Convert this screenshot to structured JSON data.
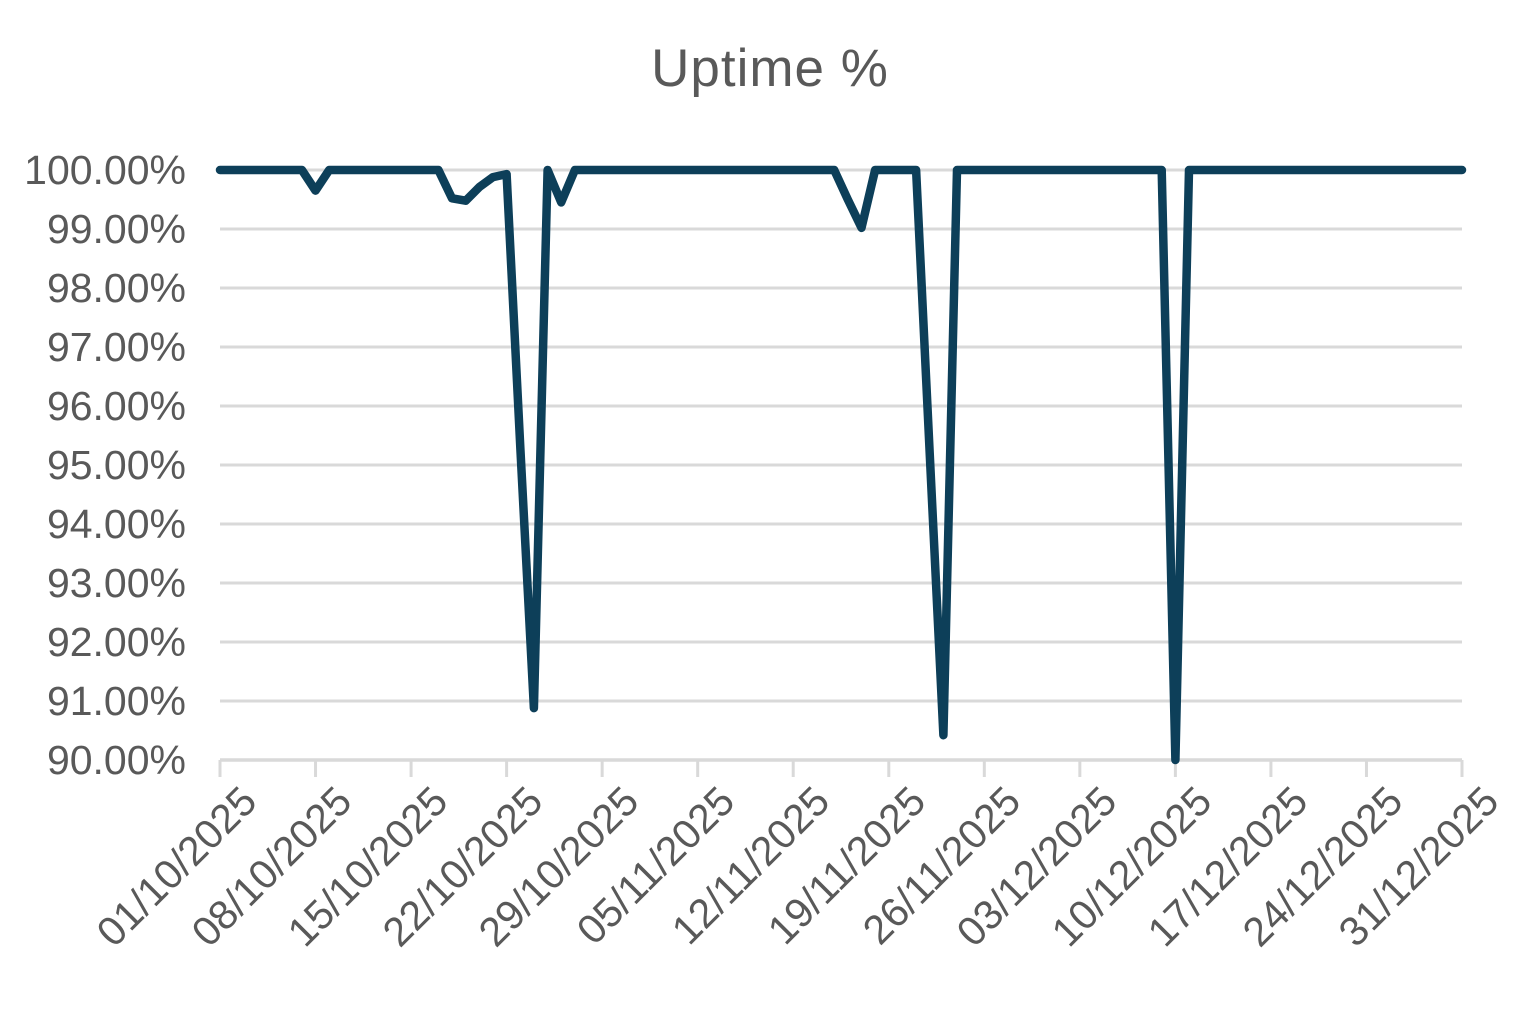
{
  "chart": {
    "title": "Uptime %"
  },
  "colors": {
    "line": "#0D3F59",
    "gridline": "#D9D9D9",
    "axis_text": "#595959",
    "title_text": "#595959",
    "background": "#FFFFFF"
  },
  "chart_data": {
    "type": "line",
    "title": "Uptime %",
    "legend": "none",
    "grid": "horizontal",
    "ylim": [
      90,
      100
    ],
    "ylabel": "",
    "xlabel": "",
    "y_tick_labels": [
      "100.00%",
      "99.00%",
      "98.00%",
      "97.00%",
      "96.00%",
      "95.00%",
      "94.00%",
      "93.00%",
      "92.00%",
      "91.00%",
      "90.00%"
    ],
    "x_tick_labels": [
      "01/10/2025",
      "08/10/2025",
      "15/10/2025",
      "22/10/2025",
      "29/10/2025",
      "05/11/2025",
      "12/11/2025",
      "19/11/2025",
      "26/11/2025",
      "03/12/2025",
      "10/12/2025",
      "17/12/2025",
      "24/12/2025",
      "31/12/2025"
    ],
    "series_start_date": "01/10/2025",
    "series_end_date": "31/12/2025",
    "series_frequency": "daily",
    "series_name": "Uptime %",
    "values": [
      100,
      100,
      100,
      100,
      100,
      100,
      100,
      99.65,
      100,
      100,
      100,
      100,
      100,
      100,
      100,
      100,
      100,
      99.52,
      99.48,
      99.71,
      99.88,
      99.93,
      95.3,
      90.88,
      100,
      99.45,
      100,
      100,
      100,
      100,
      100,
      100,
      100,
      100,
      100,
      100,
      100,
      100,
      100,
      100,
      100,
      100,
      100,
      100,
      100,
      100,
      99.5,
      99.02,
      100,
      100,
      100,
      100,
      95.2,
      90.42,
      100,
      100,
      100,
      100,
      100,
      100,
      100,
      100,
      100,
      100,
      100,
      100,
      100,
      100,
      100,
      100,
      90,
      100,
      100,
      100,
      100,
      100,
      100,
      100,
      100,
      100,
      100,
      100,
      100,
      100,
      100,
      100,
      100,
      100,
      100,
      100,
      100,
      100
    ],
    "notable_dips": [
      {
        "date": "08/10/2025",
        "value": 99.65
      },
      {
        "date": "18/10/2025",
        "value": 99.52
      },
      {
        "date": "19/10/2025",
        "value": 99.48
      },
      {
        "date": "24/10/2025",
        "value": 90.88
      },
      {
        "date": "26/10/2025",
        "value": 99.45
      },
      {
        "date": "16/11/2025",
        "value": 99.5
      },
      {
        "date": "17/11/2025",
        "value": 99.02
      },
      {
        "date": "23/11/2025",
        "value": 90.42
      },
      {
        "date": "10/12/2025",
        "value": 90.0
      }
    ]
  }
}
